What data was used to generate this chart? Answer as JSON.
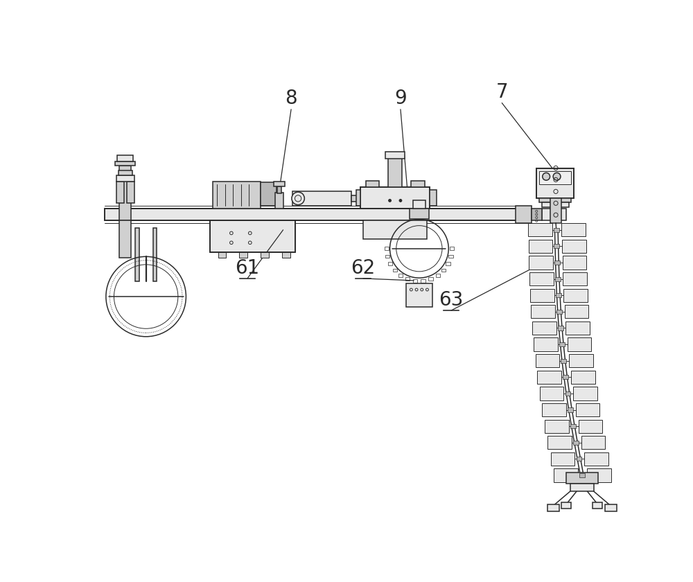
{
  "bg_color": "#ffffff",
  "lc": "#2a2a2a",
  "fc_light": "#e8e8e8",
  "fc_med": "#d0d0d0",
  "fc_dark": "#b8b8b8",
  "label_7": "7",
  "label_8": "8",
  "label_9": "9",
  "label_61": "61",
  "label_62": "62",
  "label_63": "63",
  "fs": 20,
  "lw_thin": 0.7,
  "lw_med": 1.1,
  "lw_thick": 1.6,
  "lw_border": 1.4
}
